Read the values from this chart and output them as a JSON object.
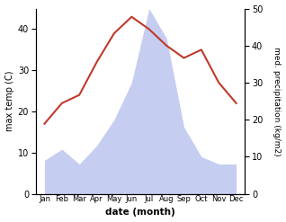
{
  "months": [
    "Jan",
    "Feb",
    "Mar",
    "Apr",
    "May",
    "Jun",
    "Jul",
    "Aug",
    "Sep",
    "Oct",
    "Nov",
    "Dec"
  ],
  "temperature": [
    17,
    22,
    24,
    32,
    39,
    43,
    40,
    36,
    33,
    35,
    27,
    22
  ],
  "precipitation": [
    9,
    12,
    8,
    13,
    20,
    30,
    50,
    42,
    18,
    10,
    8,
    8
  ],
  "temp_color": "#c0392b",
  "precip_fill_color": "#c5cdf0",
  "ylabel_left": "max temp (C)",
  "ylabel_right": "med. precipitation (kg/m2)",
  "xlabel": "date (month)",
  "ylim_left": [
    0,
    45
  ],
  "ylim_right": [
    0,
    50
  ],
  "yticks_left": [
    0,
    10,
    20,
    30,
    40
  ],
  "yticks_right": [
    0,
    10,
    20,
    30,
    40,
    50
  ],
  "bg_color": "#f0f0f8"
}
